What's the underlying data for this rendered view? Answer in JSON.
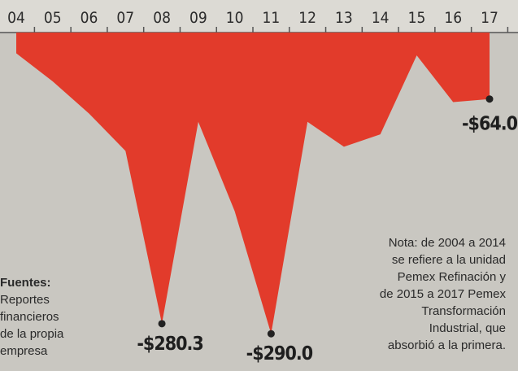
{
  "chart_data": {
    "type": "area",
    "categories": [
      "04",
      "05",
      "06",
      "07",
      "08",
      "09",
      "10",
      "11",
      "12",
      "13",
      "14",
      "15",
      "16",
      "17"
    ],
    "values": [
      -20,
      -47,
      -78,
      -114,
      -280.3,
      -86,
      -172,
      -290.0,
      -86,
      -110,
      -98,
      -22,
      -67,
      -64.0
    ],
    "value_labels": [
      null,
      null,
      null,
      null,
      "-$280.3",
      null,
      null,
      "-$290.0",
      null,
      null,
      null,
      null,
      null,
      "-$64.0"
    ],
    "color": "#e23b2b",
    "ylim": [
      -300,
      0
    ],
    "sources": {
      "title": "Fuentes:",
      "lines": [
        "Reportes",
        "financieros",
        "de la propia",
        "empresa"
      ]
    },
    "note": [
      "Nota: de 2004 a 2014",
      "se refiere a la unidad",
      "Pemex Refinación y",
      "de 2015 a 2017 Pemex",
      "Transformación",
      "Industrial, que",
      "absorbió a la primera."
    ]
  }
}
